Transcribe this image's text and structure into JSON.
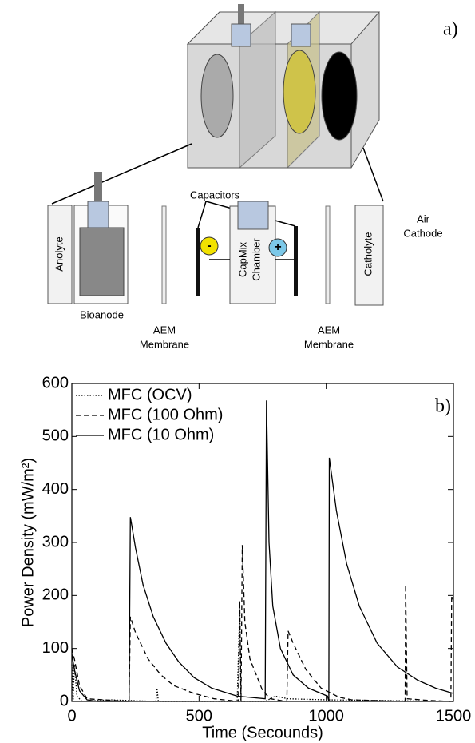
{
  "diagram": {
    "panel_label": "a)",
    "capacitors": "Capacitors",
    "anolyte": "Anolyte",
    "bioanode": "Bioanode",
    "aem_left": [
      "AEM",
      "Membrane"
    ],
    "aem_right": [
      "AEM",
      "Membrane"
    ],
    "chamber": [
      "CapMix",
      "Chamber"
    ],
    "minus": "-",
    "plus": "+",
    "catholyte": "Catholyte",
    "air_cathode": [
      "Air",
      "Cathode"
    ]
  },
  "chart_data": {
    "type": "line",
    "panel_label": "b)",
    "x_label": "Time (Secounds)",
    "y_label": "Power Density (mW/m²)",
    "xlim": [
      0,
      1500
    ],
    "xticks": [
      0,
      500,
      1000,
      1500
    ],
    "ylim": [
      0,
      600
    ],
    "yticks": [
      0,
      100,
      200,
      300,
      400,
      500,
      600
    ],
    "legend": "upper left",
    "series": [
      {
        "name": "MFC (OCV)",
        "color": "#000000",
        "linestyle": "dotted",
        "x": [
          0,
          5,
          10,
          20,
          40,
          150,
          330,
          335,
          340,
          650,
          660,
          665,
          760,
          800,
          850,
          1000,
          1500
        ],
        "values": [
          70,
          0,
          70,
          10,
          0,
          3,
          0,
          25,
          0,
          0,
          180,
          0,
          0,
          10,
          5,
          3,
          0
        ]
      },
      {
        "name": "MFC (100 Ohm)",
        "color": "#000000",
        "linestyle": "dashed",
        "x": [
          0,
          10,
          30,
          60,
          225,
          230,
          250,
          300,
          350,
          400,
          480,
          560,
          655,
          660,
          665,
          670,
          680,
          700,
          750,
          780,
          845,
          850,
          870,
          920,
          980,
          1050,
          1100,
          1310,
          1312,
          1318,
          1400,
          1490,
          1493,
          1500
        ],
        "values": [
          100,
          80,
          30,
          5,
          0,
          160,
          130,
          80,
          50,
          30,
          15,
          5,
          0,
          190,
          0,
          295,
          150,
          80,
          20,
          5,
          0,
          133,
          110,
          60,
          25,
          8,
          3,
          0,
          220,
          5,
          2,
          0,
          200,
          190
        ]
      },
      {
        "name": "MFC (10 Ohm)",
        "color": "#000000",
        "linestyle": "solid",
        "x": [
          0,
          10,
          30,
          60,
          100,
          225,
          230,
          250,
          280,
          320,
          370,
          420,
          480,
          550,
          650,
          760,
          765,
          775,
          790,
          820,
          870,
          930,
          1005,
          1010,
          1012,
          1040,
          1080,
          1130,
          1200,
          1280,
          1360,
          1430,
          1500
        ],
        "values": [
          90,
          60,
          20,
          3,
          0,
          0,
          348,
          290,
          220,
          160,
          110,
          75,
          45,
          25,
          10,
          5,
          568,
          300,
          180,
          100,
          50,
          25,
          10,
          0,
          460,
          360,
          260,
          180,
          110,
          65,
          40,
          25,
          15
        ]
      }
    ]
  }
}
